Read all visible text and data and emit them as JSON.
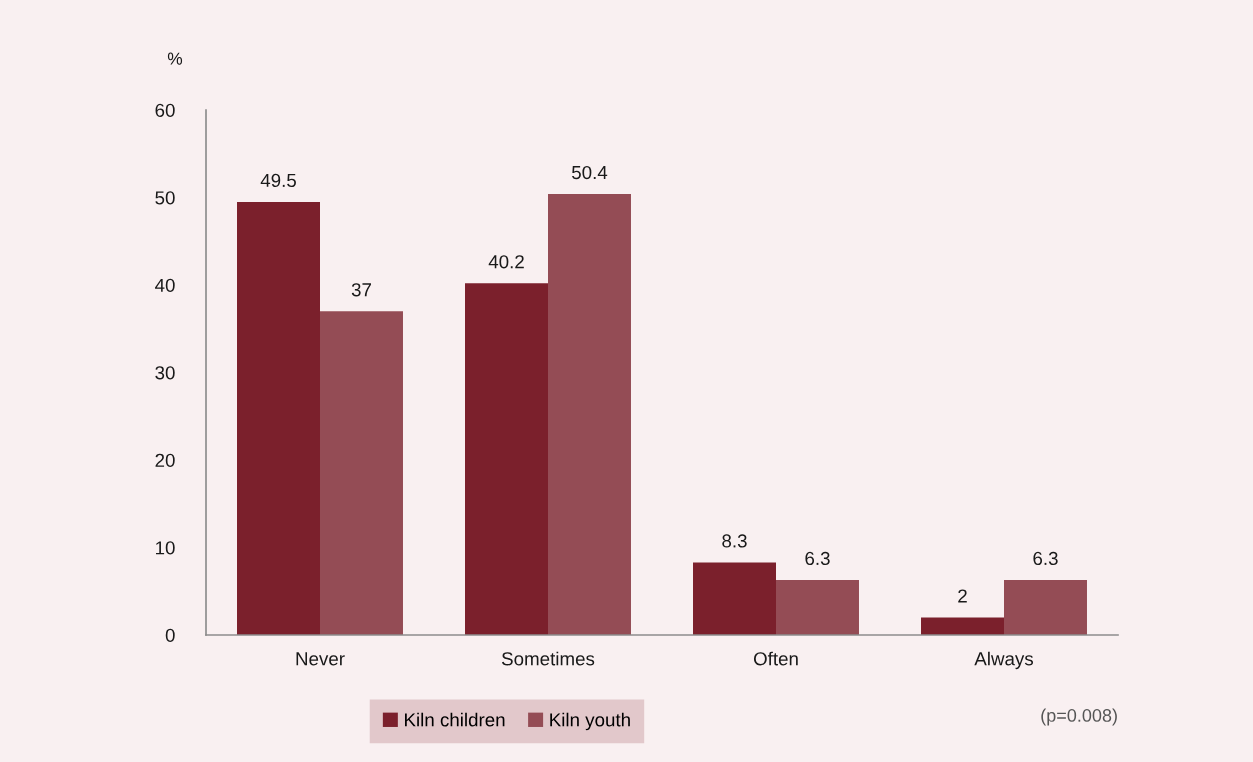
{
  "chart_data": {
    "type": "bar",
    "ylabel": "%",
    "categories": [
      "Never",
      "Sometimes",
      "Often",
      "Always"
    ],
    "series": [
      {
        "name": "Kiln children",
        "color": "#7b202c",
        "values": [
          49.5,
          40.2,
          8.3,
          2
        ]
      },
      {
        "name": "Kiln youth",
        "color": "#944c55",
        "values": [
          37,
          50.4,
          6.3,
          6.3
        ]
      }
    ],
    "ylim": [
      0,
      60
    ],
    "yticks": [
      0,
      10,
      20,
      30,
      40,
      50,
      60
    ],
    "data_labels": true,
    "grid": false,
    "legend": "bottom",
    "annotations": [
      "(p=0.008)"
    ]
  }
}
